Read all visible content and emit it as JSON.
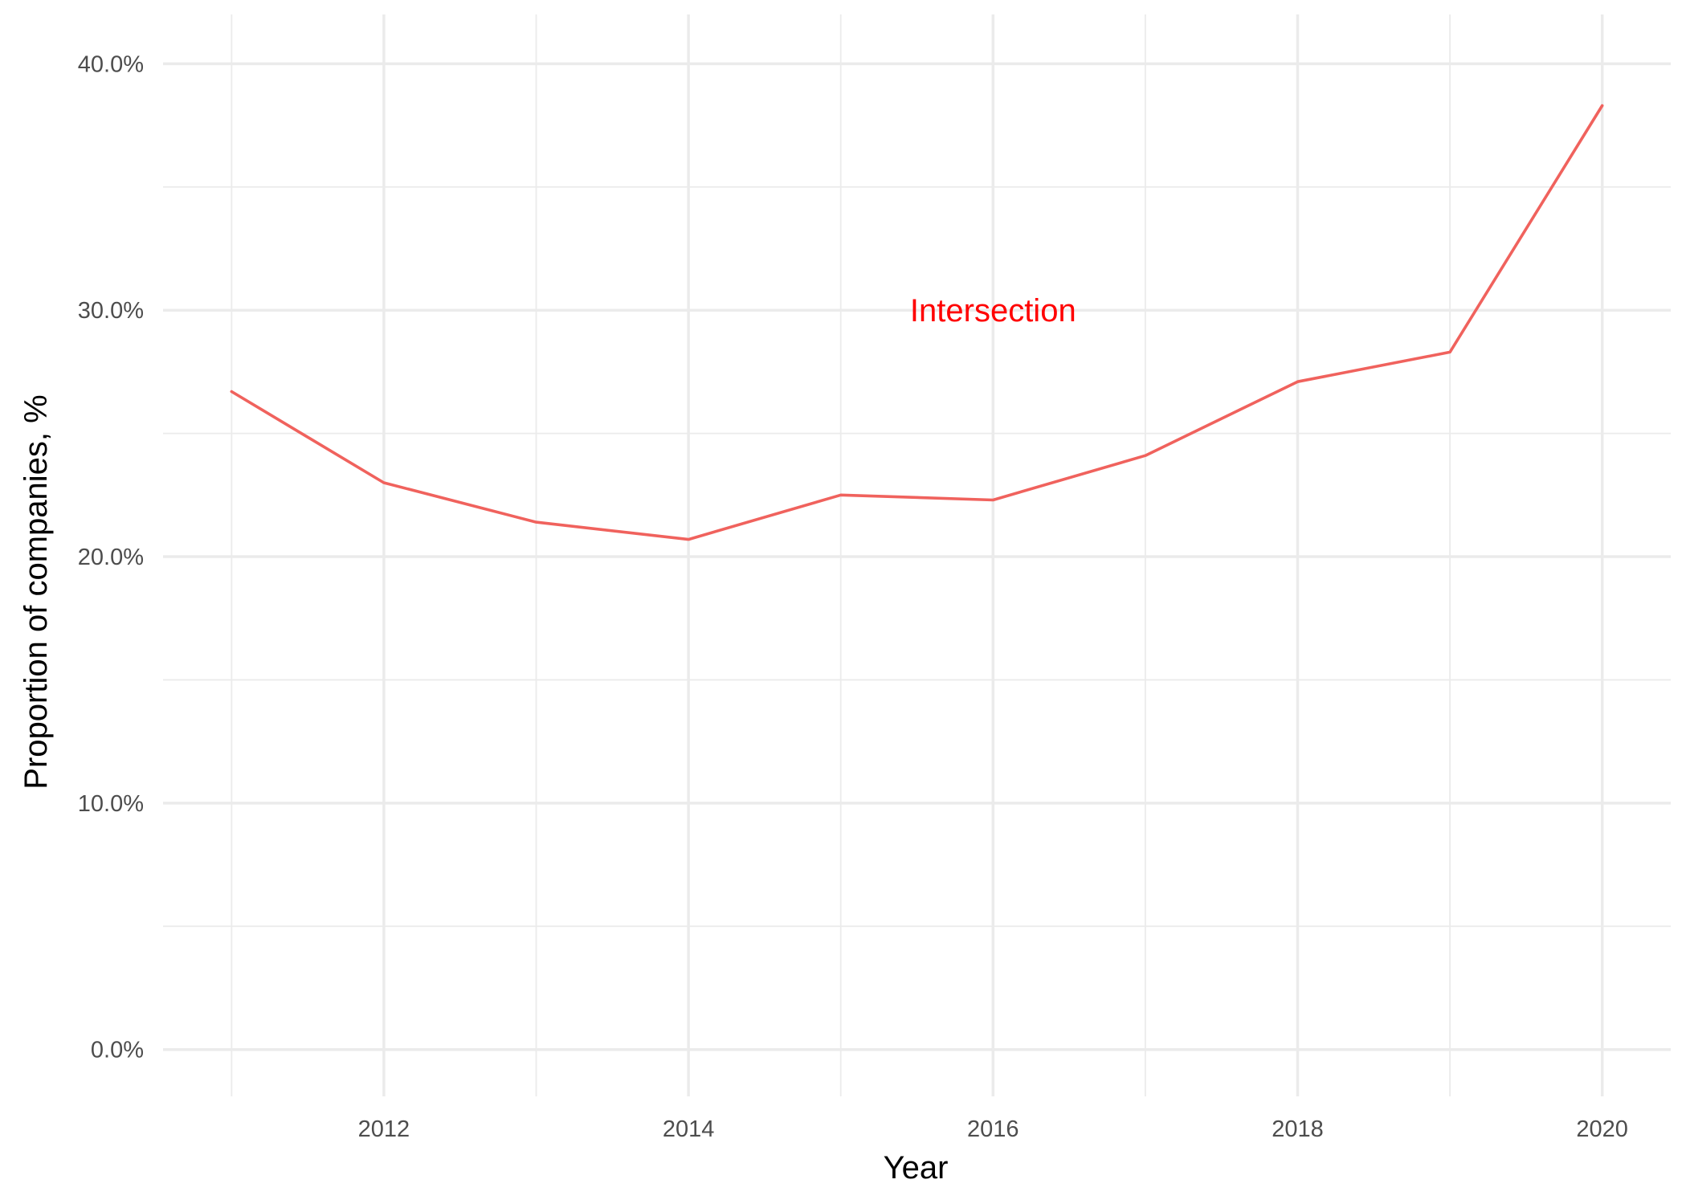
{
  "chart_data": {
    "type": "line",
    "title": "",
    "xlabel": "Year",
    "ylabel": "Proportion of companies, %",
    "x": [
      2011,
      2012,
      2013,
      2014,
      2015,
      2016,
      2017,
      2018,
      2019,
      2020
    ],
    "series": [
      {
        "color": "#f0625d",
        "values": [
          26.7,
          23.0,
          21.4,
          20.7,
          22.5,
          22.3,
          24.1,
          27.1,
          28.3,
          38.3
        ]
      }
    ],
    "xlim": [
      2010.55,
      2020.45
    ],
    "ylim": [
      -1.9,
      42.0
    ],
    "x_ticks": [
      {
        "value": 2012,
        "label": "2012"
      },
      {
        "value": 2014,
        "label": "2014"
      },
      {
        "value": 2016,
        "label": "2016"
      },
      {
        "value": 2018,
        "label": "2018"
      },
      {
        "value": 2020,
        "label": "2020"
      }
    ],
    "x_minor_ticks": [
      2011,
      2013,
      2015,
      2017,
      2019
    ],
    "y_ticks": [
      {
        "value": 0,
        "label": "0.0%"
      },
      {
        "value": 10,
        "label": "10.0%"
      },
      {
        "value": 20,
        "label": "20.0%"
      },
      {
        "value": 30,
        "label": "30.0%"
      },
      {
        "value": 40,
        "label": "40.0%"
      }
    ],
    "y_minor_ticks": [
      5,
      15,
      25,
      35
    ],
    "annotation": {
      "text": "Intersection",
      "x": 2016,
      "y": 30,
      "color": "#ff0000"
    },
    "grid": true,
    "legend": "none"
  }
}
